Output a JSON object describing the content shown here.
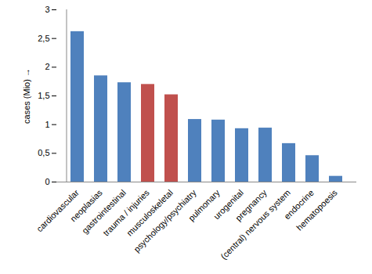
{
  "chart_data": {
    "type": "bar",
    "y_label": "cases (Mio)",
    "categories": [
      "cardiovascular",
      "neoplasias",
      "gastrointestinal",
      "trauma / injuries",
      "musculoskeletal",
      "psychology/psychiatry",
      "pulmonary",
      "urogenital",
      "pregnancy",
      "(central) nervous system",
      "endocrine",
      "hematopoesis"
    ],
    "values": [
      2.62,
      1.85,
      1.73,
      1.7,
      1.52,
      1.09,
      1.08,
      0.93,
      0.94,
      0.67,
      0.46,
      0.1
    ],
    "colors": [
      "#4f81bd",
      "#4f81bd",
      "#4f81bd",
      "#c0504d",
      "#c0504d",
      "#4f81bd",
      "#4f81bd",
      "#4f81bd",
      "#4f81bd",
      "#4f81bd",
      "#4f81bd",
      "#4f81bd"
    ],
    "ylim": [
      0,
      3
    ],
    "yticks": [
      0,
      {
        "value": 0.5,
        "label": "0,5"
      },
      1,
      {
        "value": 1.5,
        "label": "1,5"
      },
      2,
      {
        "value": 2.5,
        "label": "2,5"
      },
      3
    ],
    "grid": false
  }
}
